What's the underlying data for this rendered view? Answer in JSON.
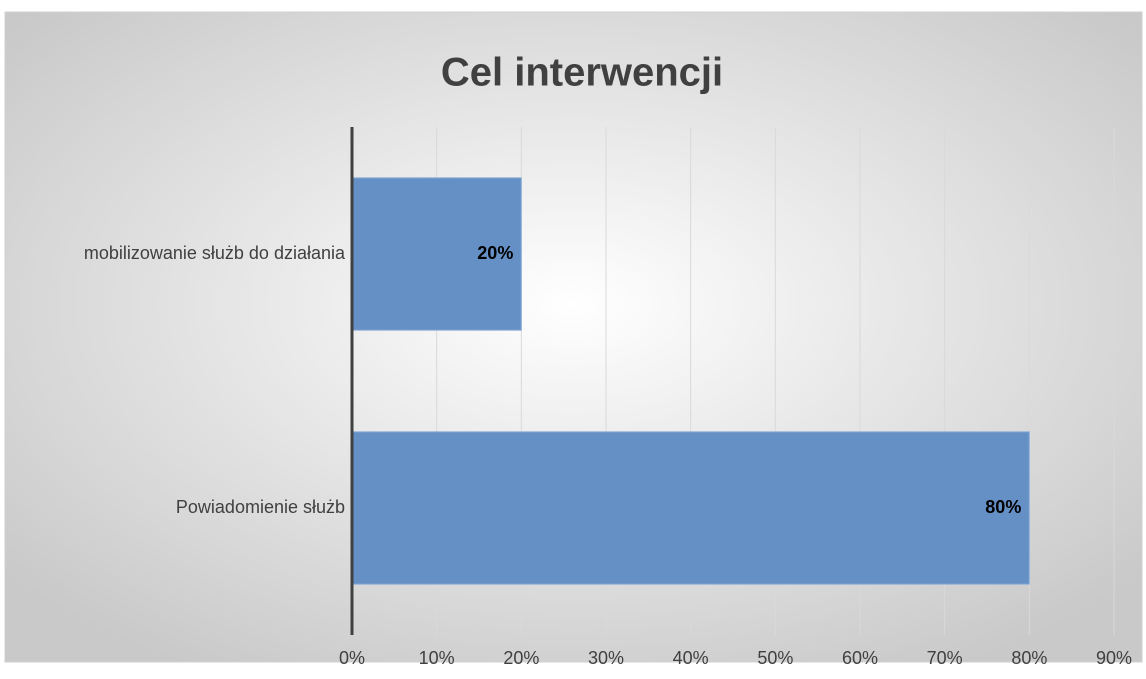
{
  "chart_data": {
    "type": "hbar",
    "title": "Cel interwencji",
    "categories": [
      "mobilizowanie służb do działania",
      "Powiadomienie służb"
    ],
    "values": [
      20,
      80
    ],
    "value_labels": [
      "20%",
      "80%"
    ],
    "color": "#6590c5",
    "xlim": [
      0,
      90
    ],
    "xticks": [
      {
        "value": 0,
        "label": "0%"
      },
      {
        "value": 10,
        "label": "10%"
      },
      {
        "value": 20,
        "label": "20%"
      },
      {
        "value": 30,
        "label": "30%"
      },
      {
        "value": 40,
        "label": "40%"
      },
      {
        "value": 50,
        "label": "50%"
      },
      {
        "value": 60,
        "label": "60%"
      },
      {
        "value": 70,
        "label": "70%"
      },
      {
        "value": 80,
        "label": "80%"
      },
      {
        "value": 90,
        "label": "90%"
      }
    ],
    "grid": true
  }
}
